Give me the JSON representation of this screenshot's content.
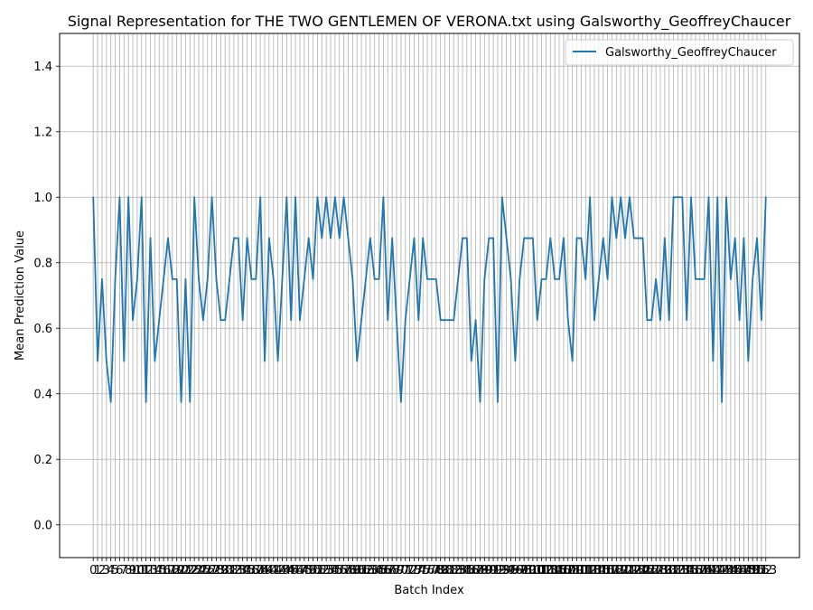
{
  "chart_data": {
    "type": "line",
    "title": "Signal Representation for THE TWO GENTLEMEN OF VERONA.txt using Galsworthy_GeoffreyChaucer",
    "xlabel": "Batch Index",
    "ylabel": "Mean Prediction Value",
    "ylim": [
      -0.1,
      1.5
    ],
    "yticks": [
      0.0,
      0.2,
      0.4,
      0.6,
      0.8,
      1.0,
      1.2,
      1.4
    ],
    "grid": true,
    "legend_position": "top-right",
    "colors": {
      "series": "#1f77b4",
      "grid": "#b0b0b0",
      "axes": "#000000"
    },
    "x": [
      0,
      1,
      2,
      3,
      4,
      5,
      6,
      7,
      8,
      9,
      10,
      11,
      12,
      13,
      14,
      15,
      16,
      17,
      18,
      19,
      20,
      21,
      22,
      23,
      24,
      25,
      26,
      27,
      28,
      29,
      30,
      31,
      32,
      33,
      34,
      35,
      36,
      37,
      38,
      39,
      40,
      41,
      42,
      43,
      44,
      45,
      46,
      47,
      48,
      49,
      50,
      51,
      52,
      53,
      54,
      55,
      56,
      57,
      58,
      59,
      60,
      61,
      62,
      63,
      64,
      65,
      66,
      67,
      68,
      69,
      70,
      71,
      72,
      73,
      74,
      75,
      76,
      77,
      78,
      79,
      80,
      81,
      82,
      83,
      84,
      85,
      86,
      87,
      88,
      89,
      90,
      91,
      92,
      93,
      94,
      95,
      96,
      97,
      98,
      99,
      100,
      101,
      102,
      103,
      104,
      105,
      106,
      107,
      108,
      109,
      110,
      111,
      112,
      113,
      114,
      115,
      116,
      117,
      118,
      119,
      120,
      121,
      122,
      123,
      124,
      125,
      126,
      127,
      128,
      129,
      130,
      131,
      132,
      133,
      134,
      135,
      136,
      137,
      138,
      139,
      140,
      141,
      142,
      143,
      144,
      145,
      146,
      147,
      148,
      149,
      150,
      151,
      152,
      153
    ],
    "series": [
      {
        "name": "Galsworthy_GeoffreyChaucer",
        "values": [
          1.0,
          0.5,
          0.75,
          0.5,
          0.375,
          0.75,
          1.0,
          0.5,
          1.0,
          0.625,
          0.75,
          1.0,
          0.375,
          0.875,
          0.5,
          0.625,
          0.75,
          0.875,
          0.75,
          0.75,
          0.375,
          0.75,
          0.375,
          1.0,
          0.75,
          0.625,
          0.75,
          1.0,
          0.75,
          0.625,
          0.625,
          0.75,
          0.875,
          0.875,
          0.625,
          0.875,
          0.75,
          0.75,
          1.0,
          0.5,
          0.875,
          0.75,
          0.5,
          0.75,
          1.0,
          0.625,
          1.0,
          0.625,
          0.75,
          0.875,
          0.75,
          1.0,
          0.875,
          1.0,
          0.875,
          1.0,
          0.875,
          1.0,
          0.875,
          0.75,
          0.5,
          0.625,
          0.75,
          0.875,
          0.75,
          0.75,
          1.0,
          0.625,
          0.875,
          0.625,
          0.375,
          0.625,
          0.75,
          0.875,
          0.625,
          0.875,
          0.75,
          0.75,
          0.75,
          0.625,
          0.625,
          0.625,
          0.625,
          0.75,
          0.875,
          0.875,
          0.5,
          0.625,
          0.375,
          0.75,
          0.875,
          0.875,
          0.375,
          1.0,
          0.875,
          0.75,
          0.5,
          0.75,
          0.875,
          0.875,
          0.875,
          0.625,
          0.75,
          0.75,
          0.875,
          0.75,
          0.75,
          0.875,
          0.625,
          0.5,
          0.875,
          0.875,
          0.75,
          1.0,
          0.625,
          0.75,
          0.875,
          0.75,
          1.0,
          0.875,
          1.0,
          0.875,
          1.0,
          0.875,
          0.875,
          0.875,
          0.625,
          0.625,
          0.75,
          0.625,
          0.875,
          0.625,
          1.0,
          1.0,
          1.0,
          0.625,
          1.0,
          0.75,
          0.75,
          0.75,
          1.0,
          0.5,
          1.0,
          0.375,
          1.0,
          0.75,
          0.875,
          0.625,
          0.875,
          0.5,
          0.75,
          0.875,
          0.625,
          1.0
        ]
      }
    ]
  }
}
